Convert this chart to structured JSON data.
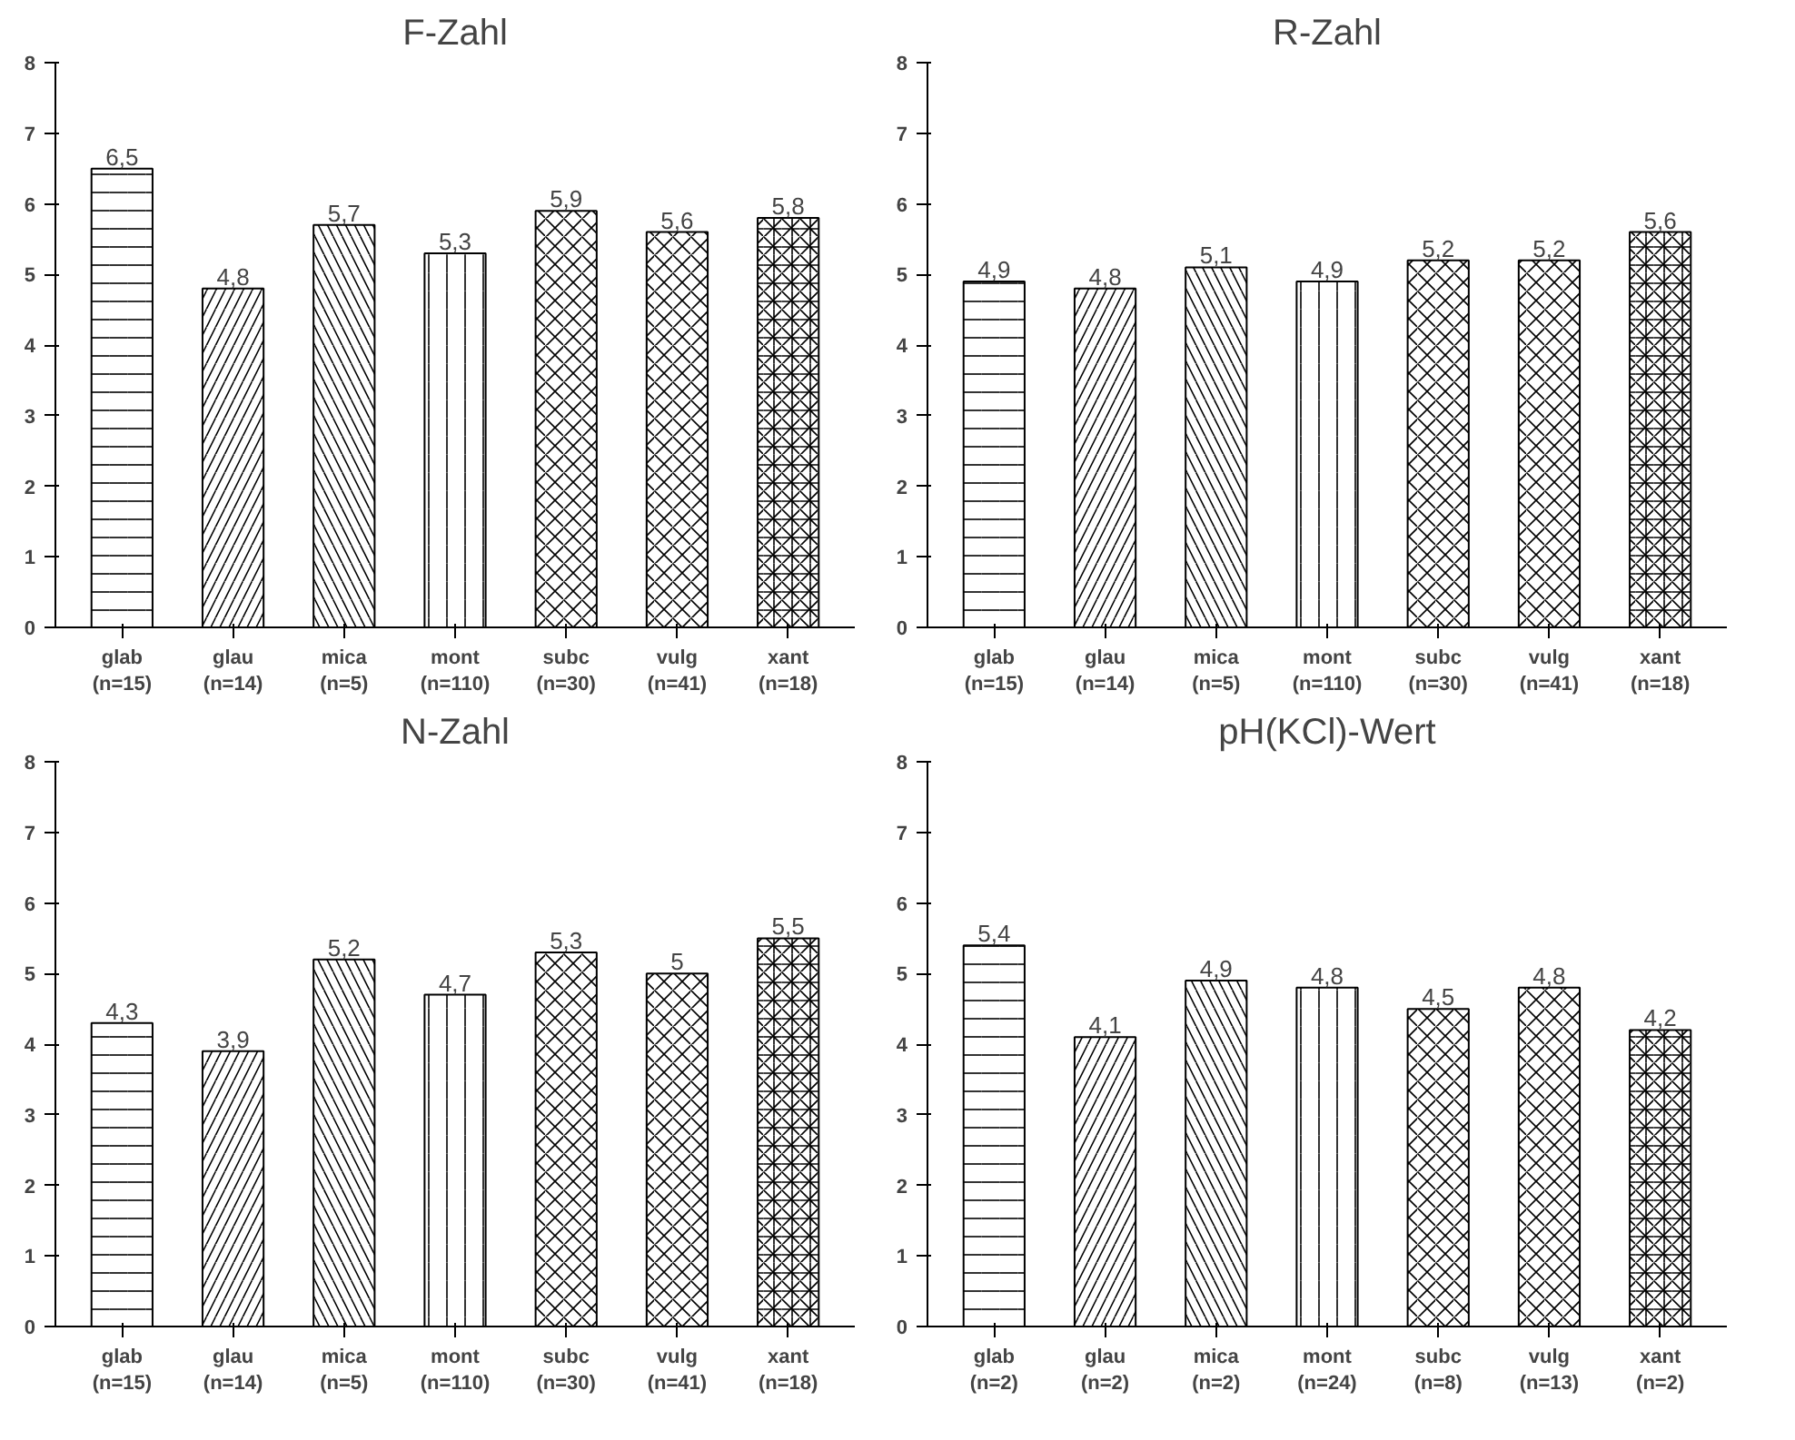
{
  "chart_data": [
    {
      "type": "bar",
      "title": "F-Zahl",
      "categories": [
        "glab\n(n=15)",
        "glau\n(n=14)",
        "mica\n(n=5)",
        "mont\n(n=110)",
        "subc\n(n=30)",
        "vulg\n(n=41)",
        "xant\n(n=18)"
      ],
      "values": [
        6.5,
        4.8,
        5.7,
        5.3,
        5.9,
        5.6,
        5.8
      ],
      "value_labels": [
        "6,5",
        "4,8",
        "5,7",
        "5,3",
        "5,9",
        "5,6",
        "5,8"
      ],
      "color": "#ffffff",
      "ylim": [
        0,
        8
      ],
      "yticks": [
        0,
        1,
        2,
        3,
        4,
        5,
        6,
        7,
        8
      ],
      "grid": false
    },
    {
      "type": "bar",
      "title": "R-Zahl",
      "categories": [
        "glab\n(n=15)",
        "glau\n(n=14)",
        "mica\n(n=5)",
        "mont\n(n=110)",
        "subc\n(n=30)",
        "vulg\n(n=41)",
        "xant\n(n=18)"
      ],
      "values": [
        4.9,
        4.8,
        5.1,
        4.9,
        5.2,
        5.2,
        5.6
      ],
      "value_labels": [
        "4,9",
        "4,8",
        "5,1",
        "4,9",
        "5,2",
        "5,2",
        "5,6"
      ],
      "color": "#ffffff",
      "ylim": [
        0,
        8
      ],
      "yticks": [
        0,
        1,
        2,
        3,
        4,
        5,
        6,
        7,
        8
      ],
      "grid": false
    },
    {
      "type": "bar",
      "title": "N-Zahl",
      "categories": [
        "glab\n(n=15)",
        "glau\n(n=14)",
        "mica\n(n=5)",
        "mont\n(n=110)",
        "subc\n(n=30)",
        "vulg\n(n=41)",
        "xant\n(n=18)"
      ],
      "values": [
        4.3,
        3.9,
        5.2,
        4.7,
        5.3,
        5,
        5.5
      ],
      "value_labels": [
        "4,3",
        "3,9",
        "5,2",
        "4,7",
        "5,3",
        "5",
        "5,5"
      ],
      "color": "#ffffff",
      "ylim": [
        0,
        8
      ],
      "yticks": [
        0,
        1,
        2,
        3,
        4,
        5,
        6,
        7,
        8
      ],
      "grid": false
    },
    {
      "type": "bar",
      "title": "pH(KCl)-Wert",
      "categories": [
        "glab\n(n=2)",
        "glau\n(n=2)",
        "mica\n(n=2)",
        "mont\n(n=24)",
        "subc\n(n=8)",
        "vulg\n(n=13)",
        "xant\n(n=2)"
      ],
      "values": [
        5.4,
        4.1,
        4.9,
        4.8,
        4.5,
        4.8,
        4.2
      ],
      "value_labels": [
        "5,4",
        "4,1",
        "4,9",
        "4,8",
        "4,5",
        "4,8",
        "4,2"
      ],
      "color": "#ffffff",
      "ylim": [
        0,
        8
      ],
      "yticks": [
        0,
        1,
        2,
        3,
        4,
        5,
        6,
        7,
        8
      ],
      "grid": false
    }
  ]
}
